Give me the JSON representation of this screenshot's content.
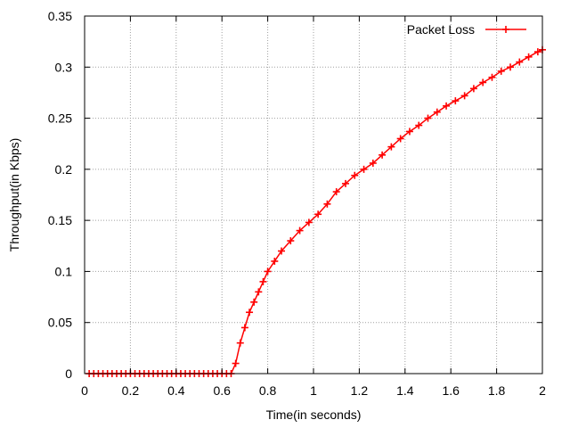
{
  "chart_data": {
    "type": "line",
    "title": "",
    "xlabel": "Time(in seconds)",
    "ylabel": "Throughput(in Kbps)",
    "xlim": [
      0,
      2
    ],
    "ylim": [
      0,
      0.35
    ],
    "x_ticks": [
      "0",
      "0.2",
      "0.4",
      "0.6",
      "0.8",
      "1",
      "1.2",
      "1.4",
      "1.6",
      "1.8",
      "2"
    ],
    "y_ticks": [
      "0",
      "0.05",
      "0.1",
      "0.15",
      "0.2",
      "0.25",
      "0.3",
      "0.35"
    ],
    "x_tick_values": [
      0,
      0.2,
      0.4,
      0.6,
      0.8,
      1.0,
      1.2,
      1.4,
      1.6,
      1.8,
      2.0
    ],
    "y_tick_values": [
      0,
      0.05,
      0.1,
      0.15,
      0.2,
      0.25,
      0.3,
      0.35
    ],
    "grid": true,
    "legend_position": "top-right",
    "series": [
      {
        "name": "Packet Loss",
        "color": "#ff0000",
        "marker": "plus",
        "x": [
          0.02,
          0.04,
          0.06,
          0.08,
          0.1,
          0.12,
          0.14,
          0.16,
          0.18,
          0.2,
          0.22,
          0.24,
          0.26,
          0.28,
          0.3,
          0.32,
          0.34,
          0.36,
          0.38,
          0.4,
          0.42,
          0.44,
          0.46,
          0.48,
          0.5,
          0.52,
          0.54,
          0.56,
          0.58,
          0.6,
          0.62,
          0.64,
          0.66,
          0.68,
          0.7,
          0.72,
          0.74,
          0.76,
          0.78,
          0.8,
          0.83,
          0.86,
          0.9,
          0.94,
          0.98,
          1.02,
          1.06,
          1.1,
          1.14,
          1.18,
          1.22,
          1.26,
          1.3,
          1.34,
          1.38,
          1.42,
          1.46,
          1.5,
          1.54,
          1.58,
          1.62,
          1.66,
          1.7,
          1.74,
          1.78,
          1.82,
          1.86,
          1.9,
          1.94,
          1.98,
          2.0
        ],
        "y": [
          0,
          0,
          0,
          0,
          0,
          0,
          0,
          0,
          0,
          0,
          0,
          0,
          0,
          0,
          0,
          0,
          0,
          0,
          0,
          0,
          0,
          0,
          0,
          0,
          0,
          0,
          0,
          0,
          0,
          0,
          0,
          0,
          0.01,
          0.03,
          0.045,
          0.06,
          0.07,
          0.08,
          0.09,
          0.1,
          0.11,
          0.12,
          0.13,
          0.14,
          0.148,
          0.156,
          0.166,
          0.178,
          0.186,
          0.194,
          0.2,
          0.206,
          0.214,
          0.222,
          0.23,
          0.237,
          0.243,
          0.25,
          0.256,
          0.262,
          0.267,
          0.272,
          0.279,
          0.285,
          0.29,
          0.296,
          0.3,
          0.305,
          0.31,
          0.315,
          0.317
        ]
      }
    ]
  }
}
